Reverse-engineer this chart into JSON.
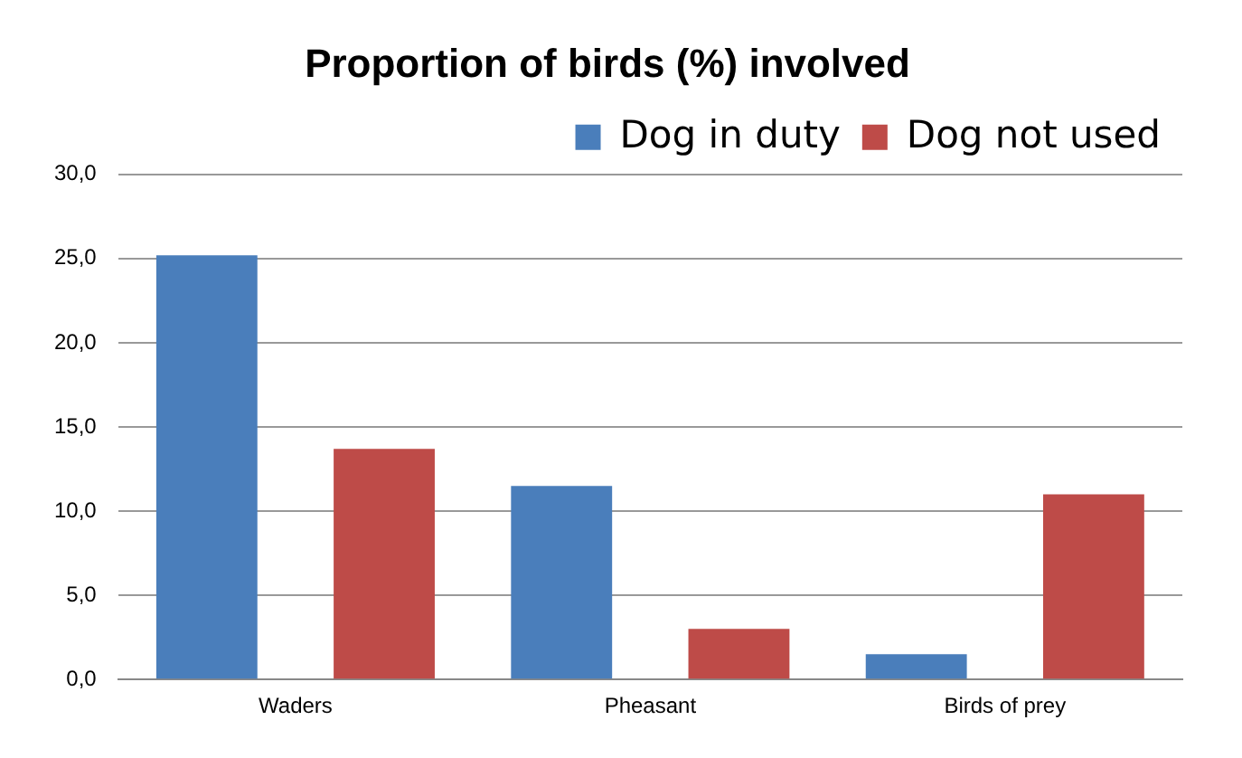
{
  "chart_data": {
    "type": "bar",
    "title": "Proportion of birds (%) involved",
    "categories": [
      "Waders",
      "Pheasant",
      "Birds of prey"
    ],
    "series": [
      {
        "name": "Dog in duty",
        "color": "#4a7ebb",
        "values": [
          25.2,
          11.5,
          1.5
        ]
      },
      {
        "name": "Dog not used",
        "color": "#be4b48",
        "values": [
          13.7,
          3.0,
          11.0
        ]
      }
    ],
    "ylim": [
      0,
      30
    ],
    "yticks": [
      {
        "value": 0,
        "label": "0,0"
      },
      {
        "value": 5,
        "label": "5,0"
      },
      {
        "value": 10,
        "label": "10,0"
      },
      {
        "value": 15,
        "label": "15,0"
      },
      {
        "value": 20,
        "label": "20,0"
      },
      {
        "value": 25,
        "label": "25,0"
      },
      {
        "value": 30,
        "label": "30,0"
      }
    ],
    "grid": "y",
    "legend": "top right"
  }
}
